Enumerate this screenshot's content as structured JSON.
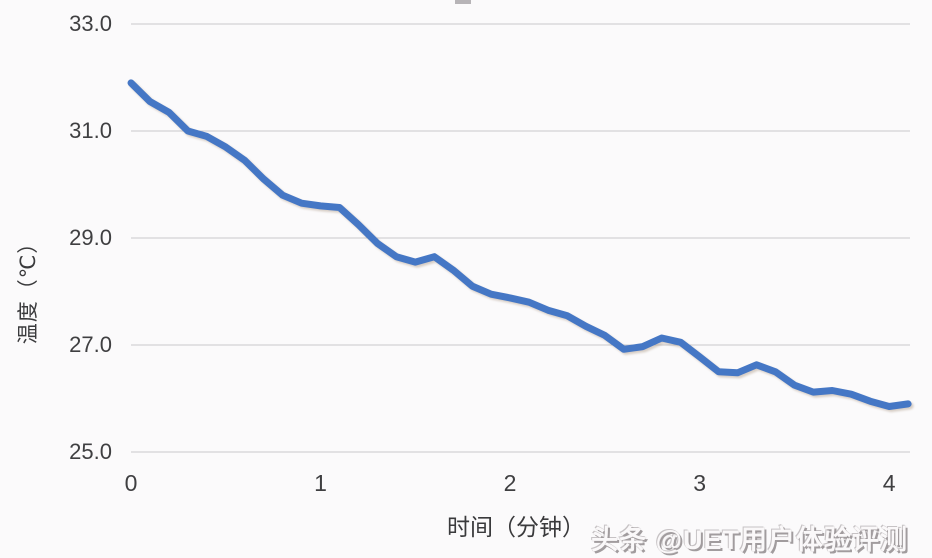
{
  "page": {
    "background_color": "#fbfafb",
    "gridline_color": "#c9c8cb",
    "tick_text_color": "#3f3f41"
  },
  "artifacts": {
    "clipped_title_fragment_color": "#b7b4b7"
  },
  "watermark": {
    "text": "头条 @UET用户体验评测",
    "color": "#b2adaf"
  },
  "chart_data": {
    "type": "line",
    "title": "",
    "xlabel": "时间（分钟）",
    "ylabel": "温度（℃）",
    "xlim": [
      0,
      4.11
    ],
    "ylim": [
      25.0,
      33.0
    ],
    "grid": "horizontal",
    "legend": "none",
    "line_color": "#4577c5",
    "y_ticks": [
      {
        "value": 33.0,
        "label": "33.0"
      },
      {
        "value": 31.0,
        "label": "31.0"
      },
      {
        "value": 29.0,
        "label": "29.0"
      },
      {
        "value": 27.0,
        "label": "27.0"
      },
      {
        "value": 25.0,
        "label": "25.0"
      }
    ],
    "x_ticks": [
      {
        "value": 0,
        "label": "0"
      },
      {
        "value": 1,
        "label": "1"
      },
      {
        "value": 2,
        "label": "2"
      },
      {
        "value": 3,
        "label": "3"
      },
      {
        "value": 4,
        "label": "4"
      }
    ],
    "series": [
      {
        "name": "温度",
        "x": [
          0.0,
          0.1,
          0.2,
          0.3,
          0.4,
          0.5,
          0.6,
          0.7,
          0.8,
          0.9,
          1.0,
          1.1,
          1.2,
          1.3,
          1.4,
          1.5,
          1.6,
          1.7,
          1.8,
          1.9,
          2.0,
          2.1,
          2.2,
          2.3,
          2.4,
          2.5,
          2.6,
          2.7,
          2.8,
          2.9,
          3.0,
          3.1,
          3.2,
          3.3,
          3.4,
          3.5,
          3.6,
          3.7,
          3.8,
          3.9,
          4.0,
          4.1
        ],
        "values": [
          31.9,
          31.55,
          31.35,
          31.0,
          30.9,
          30.7,
          30.45,
          30.1,
          29.8,
          29.65,
          29.6,
          29.57,
          29.25,
          28.9,
          28.65,
          28.55,
          28.65,
          28.4,
          28.1,
          27.95,
          27.88,
          27.8,
          27.65,
          27.55,
          27.35,
          27.18,
          26.92,
          26.97,
          27.13,
          27.05,
          26.78,
          26.5,
          26.48,
          26.63,
          26.5,
          26.25,
          26.12,
          26.15,
          26.08,
          25.95,
          25.85,
          25.9
        ]
      }
    ]
  }
}
